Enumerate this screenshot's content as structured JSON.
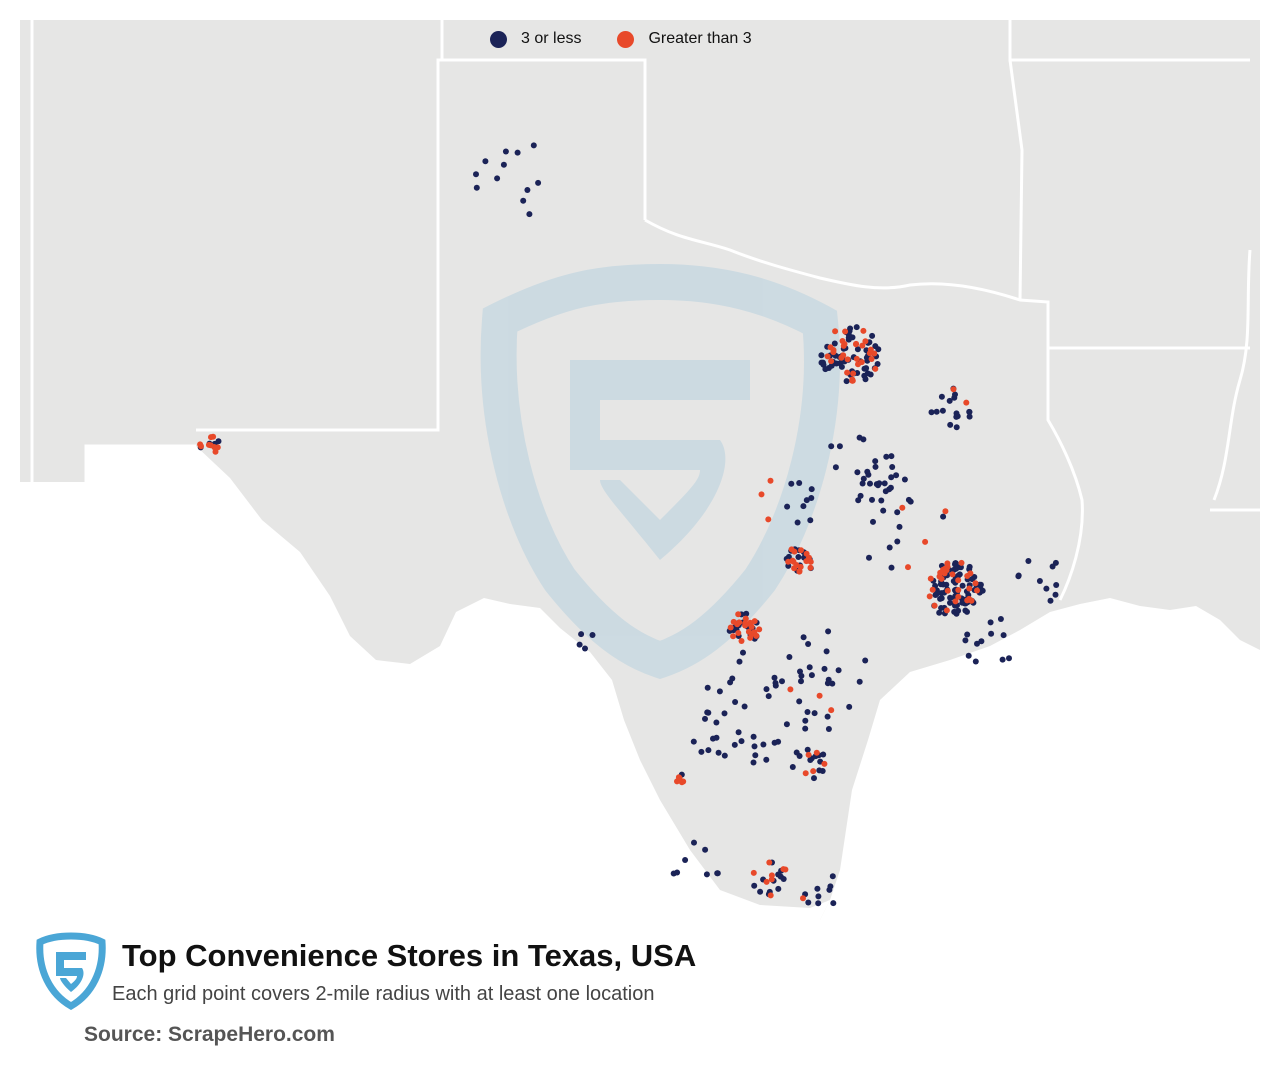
{
  "legend": {
    "items": [
      {
        "label": "3 or less",
        "color": "#1b2357"
      },
      {
        "label": "Greater than 3",
        "color": "#e8492a"
      }
    ]
  },
  "title": "Top Convenience Stores in Texas, USA",
  "subtitle": "Each grid point covers 2-mile radius with at least one location",
  "source": "Source: ScrapeHero.com",
  "colors": {
    "land": "#e6e6e5",
    "border": "#ffffff",
    "low": "#1b2357",
    "high": "#e8492a",
    "watermark": "#bcd3e0",
    "logo": "#4aa6d6"
  }
}
